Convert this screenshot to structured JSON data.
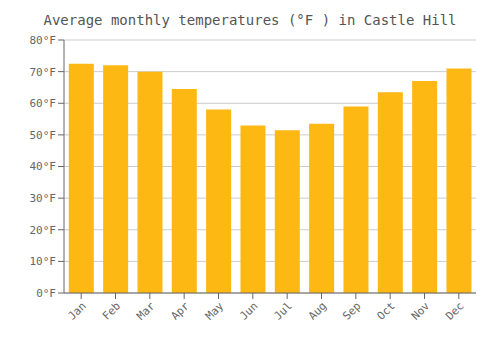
{
  "chart_data": {
    "type": "bar",
    "title": "Average monthly temperatures (°F ) in Castle Hill",
    "categories": [
      "Jan",
      "Feb",
      "Mar",
      "Apr",
      "May",
      "Jun",
      "Jul",
      "Aug",
      "Sep",
      "Oct",
      "Nov",
      "Dec"
    ],
    "values": [
      72.5,
      72.0,
      70.0,
      64.5,
      58.0,
      53.0,
      51.5,
      53.5,
      59.0,
      63.5,
      67.0,
      71.0
    ],
    "color": "#FDB813",
    "ylim": [
      0,
      80
    ],
    "yticks": [
      {
        "value": 0,
        "label": "0°F"
      },
      {
        "value": 10,
        "label": "10°F"
      },
      {
        "value": 20,
        "label": "20°F"
      },
      {
        "value": 30,
        "label": "30°F"
      },
      {
        "value": 40,
        "label": "40°F"
      },
      {
        "value": 50,
        "label": "50°F"
      },
      {
        "value": 60,
        "label": "60°F"
      },
      {
        "value": 70,
        "label": "70°F"
      },
      {
        "value": 80,
        "label": "80°F"
      }
    ],
    "grid": true
  }
}
